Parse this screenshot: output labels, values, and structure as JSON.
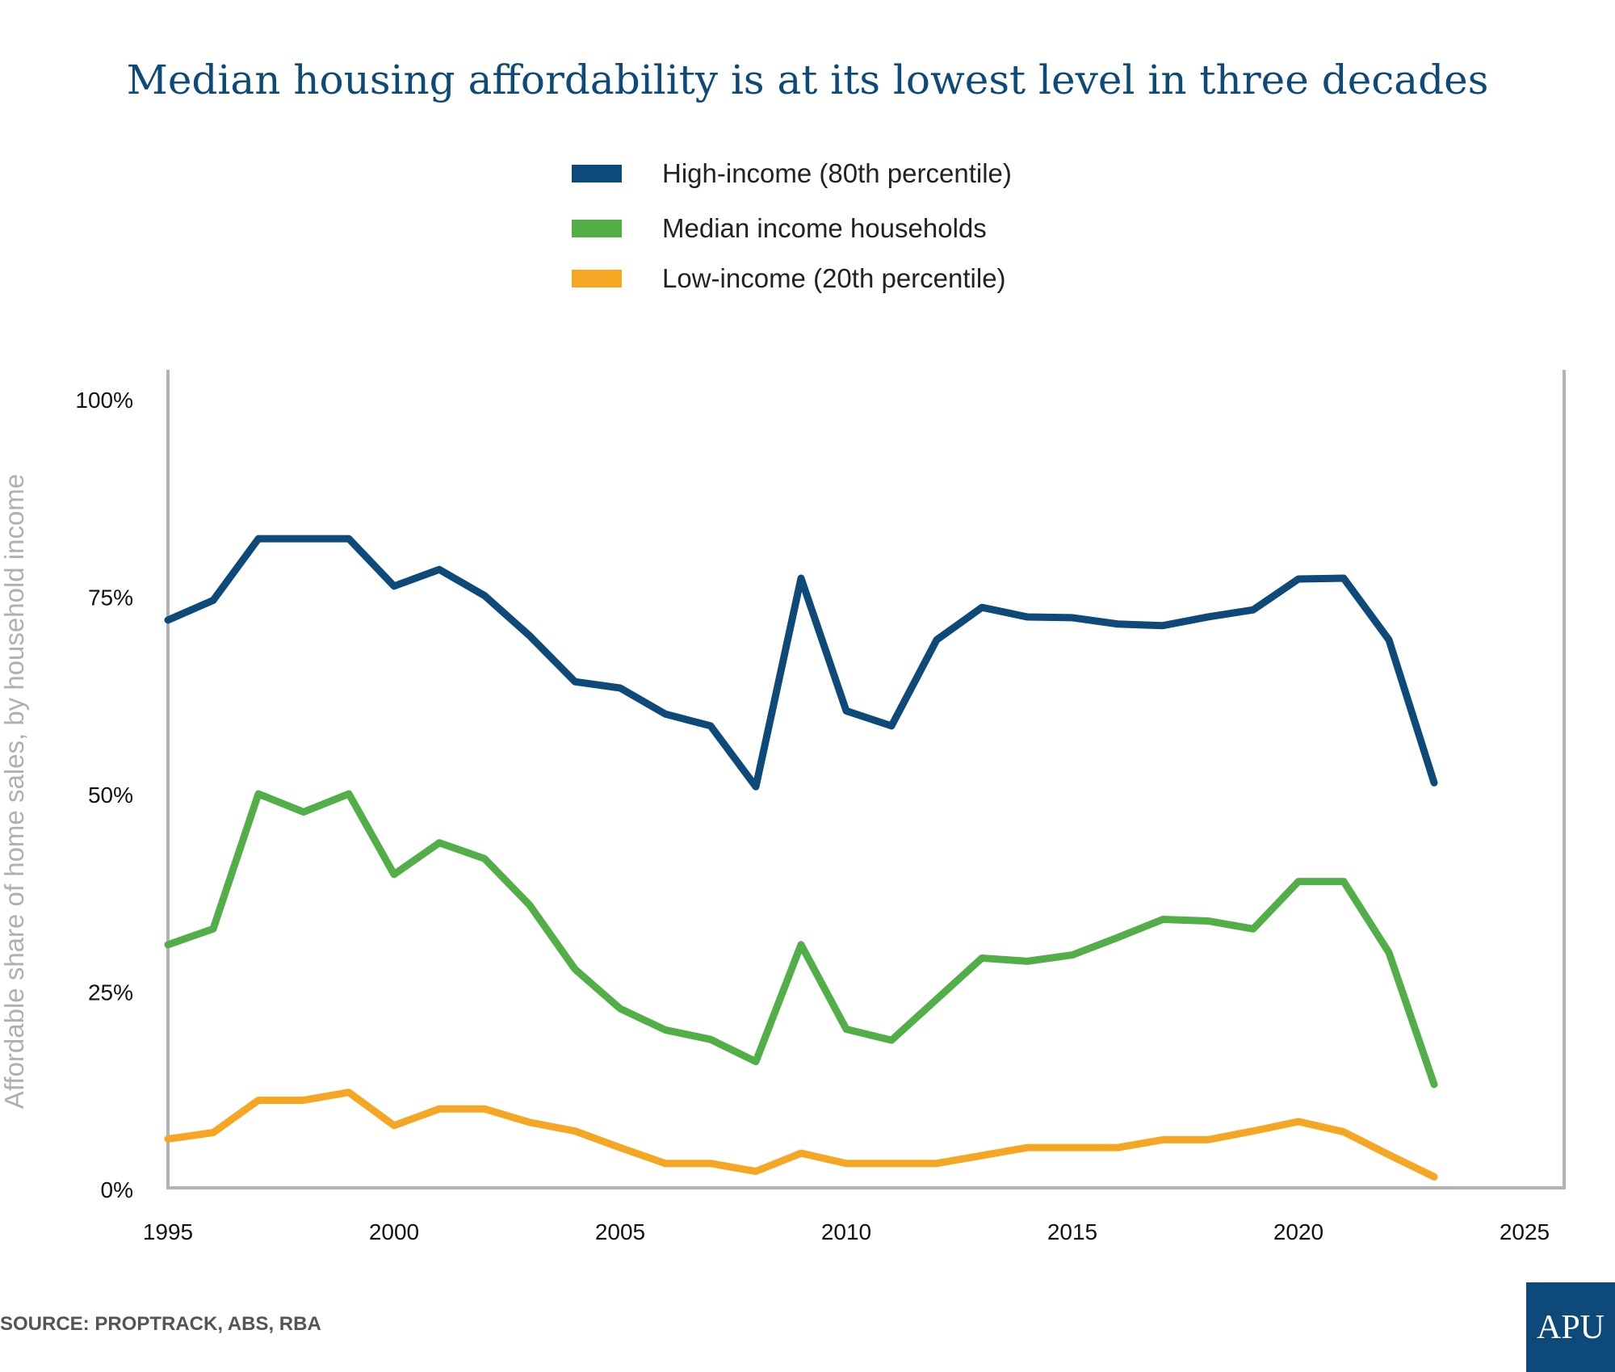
{
  "chart_data": {
    "type": "line",
    "title": "Median housing affordability is at its lowest level in three decades",
    "ylabel": "Affordable share of home sales, by household income",
    "xlabel": "",
    "xlim": [
      1995,
      2025
    ],
    "ylim": [
      0,
      100
    ],
    "x_ticks": [
      "1995",
      "2000",
      "2005",
      "2010",
      "2015",
      "2020",
      "2025"
    ],
    "y_ticks": [
      "0%",
      "25%",
      "50%",
      "75%",
      "100%"
    ],
    "grid": false,
    "legend_position": "top-center",
    "x": [
      1995,
      1996,
      1997,
      1998,
      1999,
      2000,
      2001,
      2002,
      2003,
      2004,
      2005,
      2006,
      2007,
      2008,
      2009,
      2010,
      2011,
      2012,
      2013,
      2014,
      2015,
      2016,
      2017,
      2018,
      2019,
      2020,
      2021,
      2022,
      2023
    ],
    "series": [
      {
        "name": "High-income (80th percentile)",
        "color": "#0d4a7a",
        "values": [
          72.1,
          74.6,
          82.4,
          82.4,
          82.4,
          76.4,
          78.5,
          75.2,
          70.1,
          64.3,
          63.5,
          60.2,
          58.7,
          51.0,
          77.4,
          60.6,
          58.7,
          69.6,
          73.7,
          72.5,
          72.4,
          71.6,
          71.4,
          72.5,
          73.4,
          77.3,
          77.4,
          69.6,
          51.5
        ]
      },
      {
        "name": "Median income households",
        "color": "#52ae47",
        "values": [
          31.0,
          33.0,
          50.1,
          47.8,
          50.1,
          39.9,
          43.9,
          41.9,
          36.0,
          27.9,
          22.9,
          20.2,
          19.0,
          16.2,
          31.0,
          20.3,
          18.9,
          24.1,
          29.3,
          28.9,
          29.7,
          31.9,
          34.2,
          34.0,
          33.0,
          39.0,
          39.0,
          30.0,
          13.3
        ]
      },
      {
        "name": "Low-income (20th percentile)",
        "color": "#f5a623",
        "values": [
          6.4,
          7.2,
          11.3,
          11.3,
          12.3,
          8.1,
          10.2,
          10.2,
          8.5,
          7.4,
          5.3,
          3.3,
          3.3,
          2.3,
          4.6,
          3.3,
          3.3,
          3.3,
          4.3,
          5.3,
          5.3,
          5.3,
          6.3,
          6.3,
          7.4,
          8.6,
          7.3,
          4.4,
          1.6
        ]
      }
    ]
  },
  "source": "SOURCE: PROPTRACK, ABS, RBA",
  "logo": "APU",
  "axis_color": "#b3b3b3"
}
